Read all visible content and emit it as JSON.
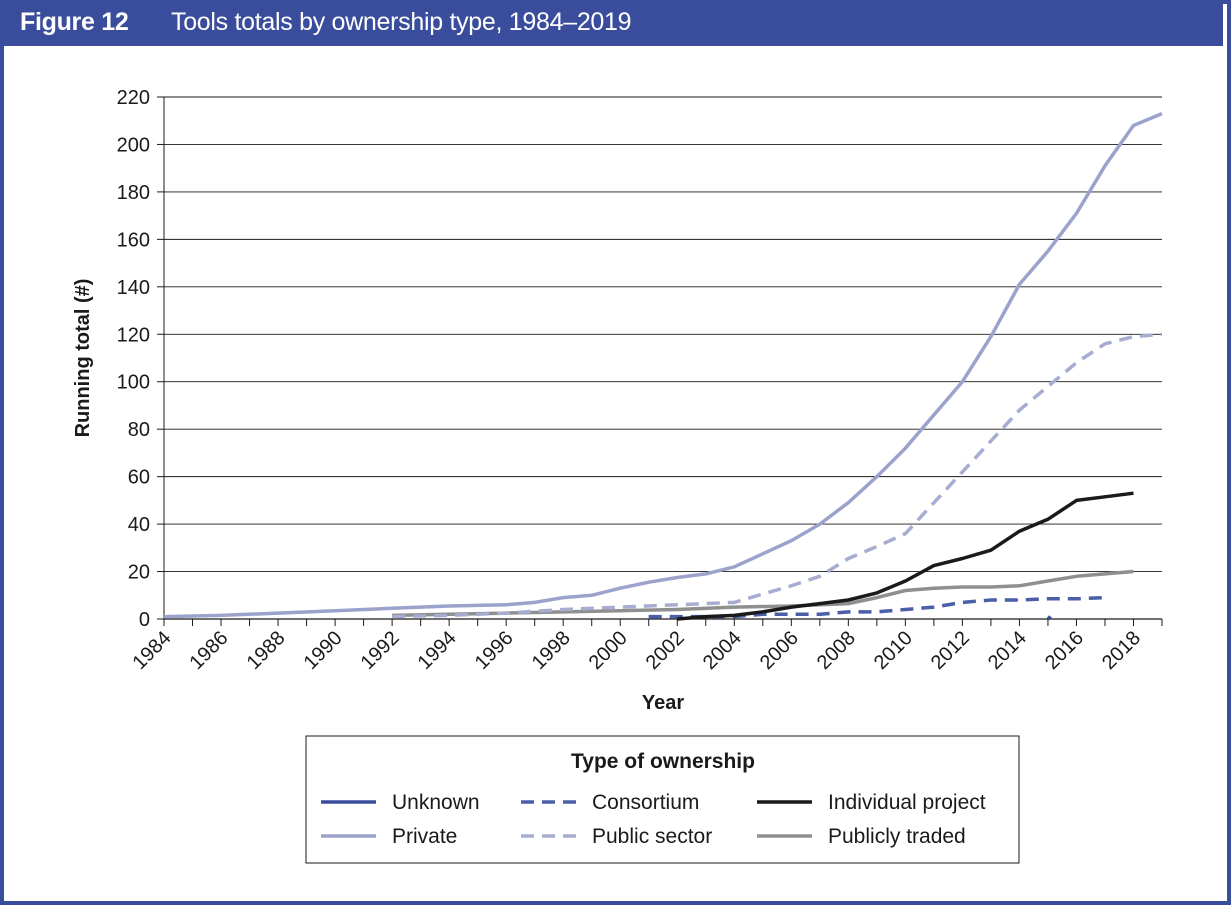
{
  "figure": {
    "label": "Figure 12",
    "title": "Tools totals by ownership type, 1984–2019"
  },
  "chart_data": {
    "type": "line",
    "xlabel": "Year",
    "ylabel": "Running total (#)",
    "xlim": [
      1984,
      2019
    ],
    "ylim": [
      0,
      220
    ],
    "yticks": [
      0,
      20,
      40,
      60,
      80,
      100,
      120,
      140,
      160,
      180,
      200,
      220
    ],
    "xticks": [
      1984,
      1986,
      1988,
      1990,
      1992,
      1994,
      1996,
      1998,
      2000,
      2002,
      2004,
      2006,
      2008,
      2010,
      2012,
      2014,
      2016,
      2018
    ],
    "grid": "horizontal",
    "legend_title": "Type of ownership",
    "legend_position": "bottom",
    "series": [
      {
        "name": "Unknown",
        "color": "#3a4d9c",
        "dash": "solid",
        "x": [
          2015,
          2015.1
        ],
        "values": [
          1,
          0
        ]
      },
      {
        "name": "Consortium",
        "color": "#4a5fa8",
        "dash": "dashed",
        "x": [
          2001,
          2002,
          2003,
          2004,
          2005,
          2006,
          2007,
          2008,
          2009,
          2010,
          2011,
          2012,
          2013,
          2014,
          2015,
          2016,
          2017
        ],
        "values": [
          1,
          1,
          1,
          1,
          2,
          2,
          2,
          3,
          3,
          4,
          5,
          7,
          8,
          8,
          8.5,
          8.5,
          9
        ]
      },
      {
        "name": "Individual project",
        "color": "#1a1a1a",
        "dash": "solid",
        "x": [
          2002,
          2003,
          2004,
          2005,
          2006,
          2007,
          2008,
          2009,
          2010,
          2011,
          2012,
          2013,
          2014,
          2015,
          2016,
          2017,
          2018
        ],
        "values": [
          0,
          1,
          1.5,
          3,
          5,
          6.5,
          8,
          11,
          16,
          22.5,
          25.5,
          29,
          37,
          42,
          50,
          51.5,
          53
        ]
      },
      {
        "name": "Private",
        "color": "#9ba3cc",
        "dash": "solid",
        "x": [
          1984,
          1986,
          1988,
          1990,
          1992,
          1994,
          1996,
          1997,
          1998,
          1999,
          2000,
          2001,
          2002,
          2003,
          2004,
          2005,
          2006,
          2007,
          2008,
          2009,
          2010,
          2011,
          2012,
          2013,
          2014,
          2015,
          2016,
          2017,
          2018,
          2019
        ],
        "values": [
          1,
          1.5,
          2.5,
          3.5,
          4.5,
          5.5,
          6,
          7,
          9,
          10,
          13,
          15.5,
          17.5,
          19,
          22,
          27.5,
          33,
          40,
          49,
          60,
          72,
          86,
          100,
          119,
          141,
          155,
          171,
          191,
          208,
          213
        ]
      },
      {
        "name": "Public sector",
        "color": "#a6add1",
        "dash": "dashed",
        "x": [
          1992,
          1994,
          1996,
          1998,
          2000,
          2002,
          2004,
          2005,
          2006,
          2007,
          2008,
          2009,
          2010,
          2011,
          2012,
          2013,
          2014,
          2015,
          2016,
          2017,
          2018,
          2019
        ],
        "values": [
          1,
          1.5,
          2.5,
          4,
          5,
          6,
          7,
          10.5,
          14,
          18,
          25.5,
          30.5,
          36,
          49,
          62,
          75,
          88,
          98,
          108,
          116,
          119,
          120
        ]
      },
      {
        "name": "Publicly traded",
        "color": "#8f8f8f",
        "dash": "solid",
        "x": [
          1992,
          1994,
          1996,
          1998,
          2000,
          2002,
          2004,
          2006,
          2008,
          2009,
          2010,
          2011,
          2012,
          2013,
          2014,
          2015,
          2016,
          2017,
          2018
        ],
        "values": [
          1.5,
          2,
          2.5,
          3,
          3.5,
          4,
          5,
          5.5,
          6.5,
          9,
          12,
          13,
          13.5,
          13.5,
          14,
          16,
          18,
          19,
          20
        ]
      }
    ]
  }
}
